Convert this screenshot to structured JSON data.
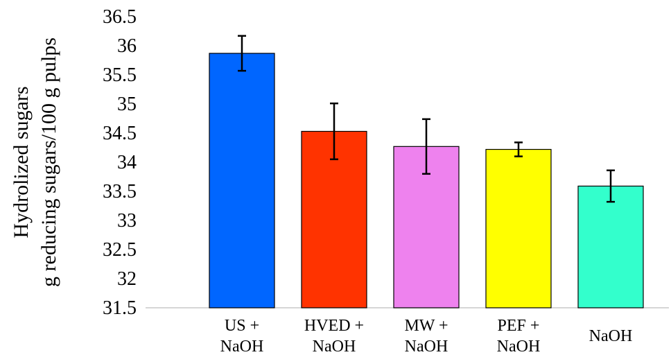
{
  "chart_data": {
    "type": "bar",
    "title": "",
    "ylabel_lines": [
      "Hydrolized sugars",
      "g reducing sugars/100 g pulps"
    ],
    "xlabel": "",
    "ylim": [
      31.5,
      36.5
    ],
    "yticks": [
      "31.5",
      "32",
      "32.5",
      "33",
      "33.5",
      "34",
      "34.5",
      "35",
      "35.5",
      "36",
      "36.5"
    ],
    "grid": false,
    "categories": [
      {
        "lines": [
          "US +",
          "NaOH"
        ]
      },
      {
        "lines": [
          "HVED +",
          "NaOH"
        ]
      },
      {
        "lines": [
          "MW +",
          "NaOH"
        ]
      },
      {
        "lines": [
          "PEF +",
          "NaOH"
        ]
      },
      {
        "lines": [
          "NaOH"
        ]
      }
    ],
    "values": [
      35.87,
      34.53,
      34.27,
      34.22,
      33.59
    ],
    "errors": [
      0.3,
      0.48,
      0.47,
      0.12,
      0.27
    ],
    "colors": [
      "#0066ff",
      "#ff3300",
      "#ee82ee",
      "#ffff00",
      "#33ffcc"
    ]
  }
}
